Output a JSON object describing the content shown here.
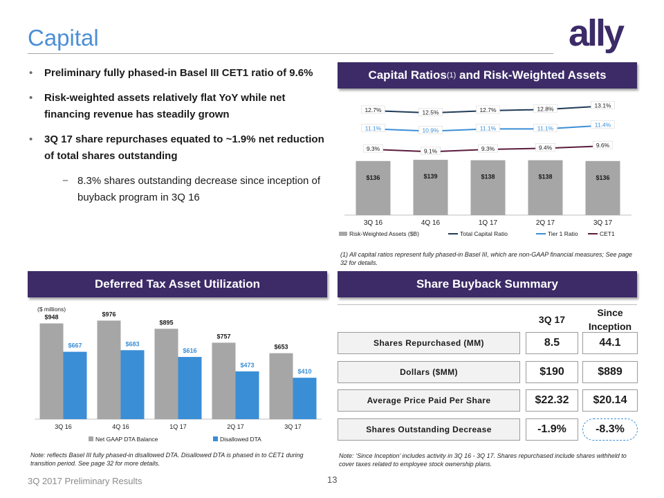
{
  "page": {
    "title": "Capital",
    "footer": "3Q 2017 Preliminary Results",
    "page_number": "13",
    "logo_text": "ally"
  },
  "bullets": [
    "Preliminary fully phased-in Basel III CET1 ratio of 9.6%",
    "Risk-weighted assets relatively flat YoY while net financing revenue has steadily grown",
    "3Q 17 share repurchases equated to ~1.9% net reduction of total shares outstanding"
  ],
  "sub_bullet": "8.3% shares outstanding decrease since inception of buyback program in 3Q 16",
  "sections": {
    "capital_ratios_title": "Capital Ratios",
    "capital_ratios_sup": "(1)",
    "capital_ratios_title_rest": " and Risk-Weighted Assets",
    "dta_title": "Deferred Tax Asset Utilization",
    "buyback_title": "Share Buyback Summary"
  },
  "notes": {
    "capital": "(1) All capital ratios represent fully phased-in Basel III, which are non-GAAP financial measures; See page 32 for details.",
    "dta": "Note: reflects Basel III fully phased-in disallowed DTA. Disallowed DTA is phased in to CET1 during transition period. See page 32 for more details.",
    "buyback": "Note: ‘Since Inception’ includes activity in 3Q 16 - 3Q 17. Shares repurchased include shares withheld to cover taxes related to employee stock ownership plans."
  },
  "buyback": {
    "col_3q17": "3Q 17",
    "col_since": "Since Inception",
    "rows": [
      {
        "label": "Shares Repurchased (MM)",
        "q": "8.5",
        "since": "44.1"
      },
      {
        "label": "Dollars ($MM)",
        "q": "$190",
        "since": "$889"
      },
      {
        "label": "Average Price Paid Per Share",
        "q": "$22.32",
        "since": "$20.14"
      },
      {
        "label": "Shares Outstanding Decrease",
        "q": "-1.9%",
        "since": "-8.3%"
      }
    ]
  },
  "colors": {
    "title_blue": "#4b8fd6",
    "header_purple": "#3c2b67",
    "bar_gray": "#a6a6a6",
    "bar_blue": "#3a8ed6",
    "total_capital": "#1f3a56",
    "tier1": "#3a8ed6",
    "cet1": "#5a1a3a"
  },
  "chart_data": [
    {
      "type": "bar",
      "categories": [
        "3Q 16",
        "4Q 16",
        "1Q 17",
        "2Q 17",
        "3Q 17"
      ],
      "bar_series": {
        "name": "Risk-Weighted Assets ($B)",
        "values": [
          136,
          139,
          138,
          138,
          136
        ],
        "labels": [
          "$136",
          "$139",
          "$138",
          "$138",
          "$136"
        ]
      },
      "line_series": [
        {
          "name": "Total Capital Ratio",
          "values": [
            12.7,
            12.5,
            12.7,
            12.8,
            13.1
          ],
          "labels": [
            "12.7%",
            "12.5%",
            "12.7%",
            "12.8%",
            "13.1%"
          ]
        },
        {
          "name": "Tier 1 Ratio",
          "values": [
            11.1,
            10.9,
            11.1,
            11.1,
            11.4
          ],
          "labels": [
            "11.1%",
            "10.9%",
            "11.1%",
            "11.1%",
            "11.4%"
          ]
        },
        {
          "name": "CET1",
          "values": [
            9.3,
            9.1,
            9.3,
            9.4,
            9.6
          ],
          "labels": [
            "9.3%",
            "9.1%",
            "9.3%",
            "9.4%",
            "9.6%"
          ]
        }
      ],
      "legend": "bottom"
    },
    {
      "type": "bar",
      "unit_label": "($ millions)",
      "categories": [
        "3Q 16",
        "4Q 16",
        "1Q 17",
        "2Q 17",
        "3Q 17"
      ],
      "series": [
        {
          "name": "Net GAAP DTA Balance",
          "values": [
            948,
            976,
            895,
            757,
            653
          ],
          "labels": [
            "$948",
            "$976",
            "$895",
            "$757",
            "$653"
          ]
        },
        {
          "name": "Disallowed DTA",
          "values": [
            667,
            683,
            616,
            473,
            410
          ],
          "labels": [
            "$667",
            "$683",
            "$616",
            "$473",
            "$410"
          ]
        }
      ],
      "legend": "bottom"
    }
  ]
}
